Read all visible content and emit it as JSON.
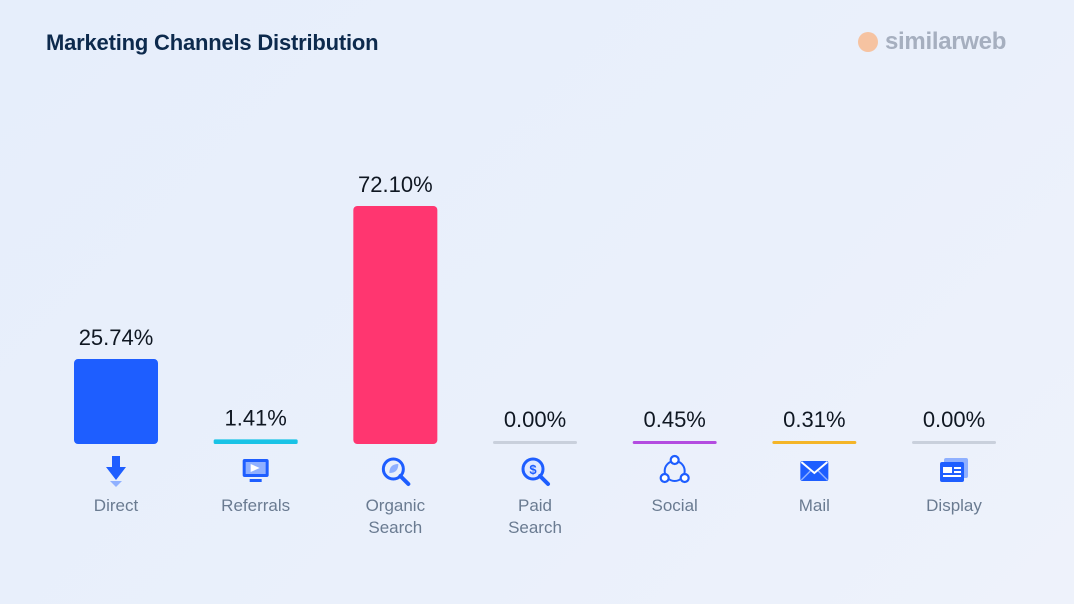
{
  "header": {
    "title": "Marketing Channels Distribution",
    "brand": "similarweb",
    "brand_icon": "similarweb-logo-icon"
  },
  "chart_data": {
    "type": "bar",
    "categories": [
      "Direct",
      "Referrals",
      "Organic Search",
      "Paid Search",
      "Social",
      "Mail",
      "Display"
    ],
    "category_lines": [
      [
        "Direct"
      ],
      [
        "Referrals"
      ],
      [
        "Organic",
        "Search"
      ],
      [
        "Paid",
        "Search"
      ],
      [
        "Social"
      ],
      [
        "Mail"
      ],
      [
        "Display"
      ]
    ],
    "values": [
      25.74,
      1.41,
      72.1,
      0.0,
      0.45,
      0.31,
      0.0
    ],
    "value_labels": [
      "25.74%",
      "1.41%",
      "72.10%",
      "0.00%",
      "0.45%",
      "0.31%",
      "0.00%"
    ],
    "colors": [
      "#1e5eff",
      "#19c3e6",
      "#ff3670",
      "#c9d0dc",
      "#b34ce0",
      "#f4b528",
      "#c9d0dc"
    ],
    "icons": [
      "direct-arrow-icon",
      "referrals-monitor-icon",
      "organic-search-icon",
      "paid-search-icon",
      "social-share-icon",
      "mail-envelope-icon",
      "display-window-icon"
    ],
    "ylim": [
      0,
      72.1
    ],
    "title": "Marketing Channels Distribution",
    "xlabel": "",
    "ylabel": "",
    "grid": false,
    "legend": "none"
  }
}
